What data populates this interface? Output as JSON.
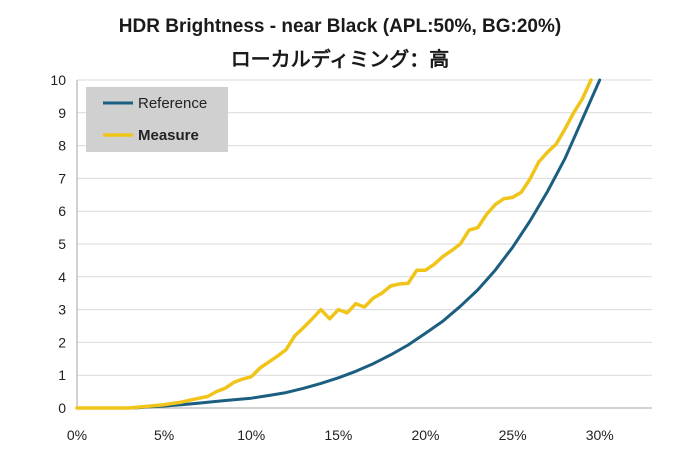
{
  "chart_data": {
    "type": "line",
    "title": "HDR Brightness - near Black (APL:50%, BG:20%)",
    "subtitle": "ローカルディミング：高",
    "xlabel": "",
    "ylabel": "",
    "x_tick_labels": [
      "0%",
      "5%",
      "10%",
      "15%",
      "20%",
      "25%",
      "30%"
    ],
    "x_ticks": [
      0,
      5,
      10,
      15,
      20,
      25,
      30
    ],
    "y_tick_labels": [
      "0",
      "1",
      "2",
      "3",
      "4",
      "5",
      "6",
      "7",
      "8",
      "9",
      "10"
    ],
    "y_ticks": [
      0,
      1,
      2,
      3,
      4,
      5,
      6,
      7,
      8,
      9,
      10
    ],
    "xlim": [
      0,
      33
    ],
    "ylim": [
      0,
      10
    ],
    "grid": "horizontal",
    "legend_position": "top-left",
    "series": [
      {
        "name": "Reference",
        "color": "#1b5e80",
        "points": [
          [
            0,
            0
          ],
          [
            3,
            0
          ],
          [
            3.5,
            0.01
          ],
          [
            4,
            0.03
          ],
          [
            5,
            0.06
          ],
          [
            6,
            0.1
          ],
          [
            7,
            0.15
          ],
          [
            8,
            0.2
          ],
          [
            9,
            0.25
          ],
          [
            10,
            0.3
          ],
          [
            11,
            0.38
          ],
          [
            12,
            0.47
          ],
          [
            13,
            0.6
          ],
          [
            14,
            0.75
          ],
          [
            15,
            0.92
          ],
          [
            16,
            1.12
          ],
          [
            17,
            1.35
          ],
          [
            18,
            1.62
          ],
          [
            19,
            1.92
          ],
          [
            20,
            2.28
          ],
          [
            21,
            2.65
          ],
          [
            22,
            3.1
          ],
          [
            23,
            3.6
          ],
          [
            24,
            4.2
          ],
          [
            25,
            4.9
          ],
          [
            26,
            5.7
          ],
          [
            27,
            6.6
          ],
          [
            28,
            7.6
          ],
          [
            29,
            8.8
          ],
          [
            30,
            10
          ]
        ]
      },
      {
        "name": "Measure",
        "color": "#f0c419",
        "points": [
          [
            0,
            0
          ],
          [
            3,
            0
          ],
          [
            4,
            0.05
          ],
          [
            5,
            0.1
          ],
          [
            6,
            0.18
          ],
          [
            7,
            0.3
          ],
          [
            7.5,
            0.35
          ],
          [
            8,
            0.5
          ],
          [
            8.5,
            0.6
          ],
          [
            9,
            0.78
          ],
          [
            9.5,
            0.88
          ],
          [
            10,
            0.95
          ],
          [
            10.5,
            1.22
          ],
          [
            11,
            1.4
          ],
          [
            11.5,
            1.58
          ],
          [
            12,
            1.78
          ],
          [
            12.5,
            2.2
          ],
          [
            13,
            2.45
          ],
          [
            13.5,
            2.72
          ],
          [
            14,
            3.0
          ],
          [
            14.5,
            2.72
          ],
          [
            15,
            3.0
          ],
          [
            15.5,
            2.9
          ],
          [
            16,
            3.18
          ],
          [
            16.5,
            3.08
          ],
          [
            17,
            3.35
          ],
          [
            17.5,
            3.5
          ],
          [
            18,
            3.72
          ],
          [
            18.5,
            3.78
          ],
          [
            19,
            3.8
          ],
          [
            19.5,
            4.2
          ],
          [
            20,
            4.2
          ],
          [
            20.5,
            4.38
          ],
          [
            21,
            4.62
          ],
          [
            21.5,
            4.8
          ],
          [
            22,
            5.0
          ],
          [
            22.5,
            5.42
          ],
          [
            23,
            5.5
          ],
          [
            23.5,
            5.9
          ],
          [
            24,
            6.2
          ],
          [
            24.5,
            6.38
          ],
          [
            25,
            6.42
          ],
          [
            25.5,
            6.58
          ],
          [
            26,
            6.98
          ],
          [
            26.5,
            7.5
          ],
          [
            27,
            7.8
          ],
          [
            27.5,
            8.05
          ],
          [
            28,
            8.5
          ],
          [
            28.5,
            9.0
          ],
          [
            29,
            9.42
          ],
          [
            29.5,
            10.0
          ]
        ]
      }
    ]
  }
}
